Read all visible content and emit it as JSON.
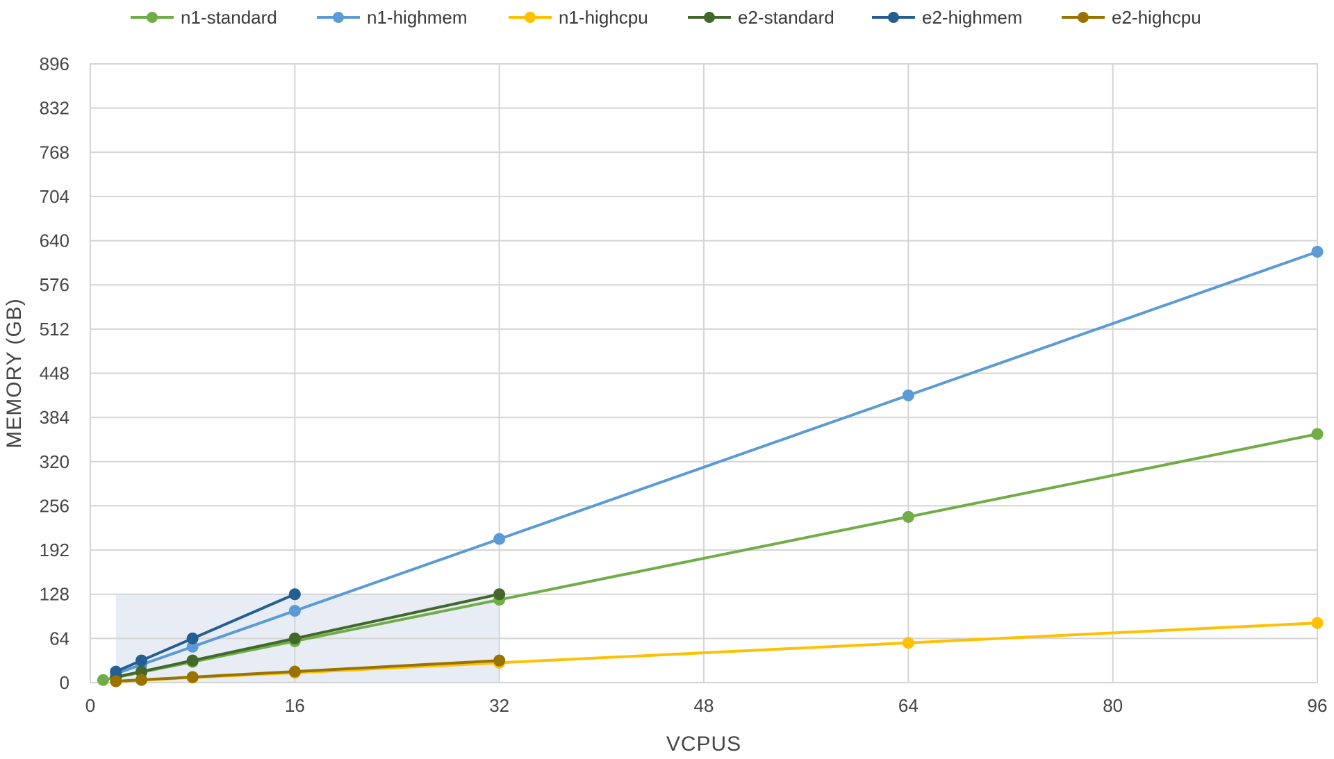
{
  "chart_data": {
    "type": "line",
    "title": "",
    "xlabel": "VCPUS",
    "ylabel": "MEMORY (GB)",
    "xlim": [
      0,
      96
    ],
    "ylim": [
      0,
      896
    ],
    "x_ticks": [
      0,
      16,
      32,
      48,
      64,
      80,
      96
    ],
    "y_ticks": [
      0,
      64,
      128,
      192,
      256,
      320,
      384,
      448,
      512,
      576,
      640,
      704,
      768,
      832,
      896
    ],
    "grid": true,
    "legend_position": "top",
    "series": [
      {
        "name": "n1-standard",
        "color": "#70ad47",
        "points": [
          [
            1,
            3.75
          ],
          [
            2,
            7.5
          ],
          [
            4,
            15
          ],
          [
            8,
            30
          ],
          [
            16,
            60
          ],
          [
            32,
            120
          ],
          [
            64,
            240
          ],
          [
            96,
            360
          ]
        ]
      },
      {
        "name": "n1-highmem",
        "color": "#5b9bd5",
        "points": [
          [
            2,
            13
          ],
          [
            4,
            26
          ],
          [
            8,
            52
          ],
          [
            16,
            104
          ],
          [
            32,
            208
          ],
          [
            64,
            416
          ],
          [
            96,
            624
          ]
        ]
      },
      {
        "name": "n1-highcpu",
        "color": "#ffc000",
        "points": [
          [
            2,
            1.8
          ],
          [
            4,
            3.6
          ],
          [
            8,
            7.2
          ],
          [
            16,
            14.4
          ],
          [
            32,
            28.8
          ],
          [
            64,
            57.6
          ],
          [
            96,
            86.4
          ]
        ]
      },
      {
        "name": "e2-standard",
        "color": "#43682b",
        "points": [
          [
            2,
            8
          ],
          [
            4,
            16
          ],
          [
            8,
            32
          ],
          [
            16,
            64
          ],
          [
            32,
            128
          ]
        ]
      },
      {
        "name": "e2-highmem",
        "color": "#255e91",
        "points": [
          [
            2,
            16
          ],
          [
            4,
            32
          ],
          [
            8,
            64
          ],
          [
            16,
            128
          ]
        ]
      },
      {
        "name": "e2-highcpu",
        "color": "#997300",
        "points": [
          [
            2,
            2
          ],
          [
            4,
            4
          ],
          [
            8,
            8
          ],
          [
            16,
            16
          ],
          [
            32,
            32
          ]
        ]
      }
    ]
  }
}
